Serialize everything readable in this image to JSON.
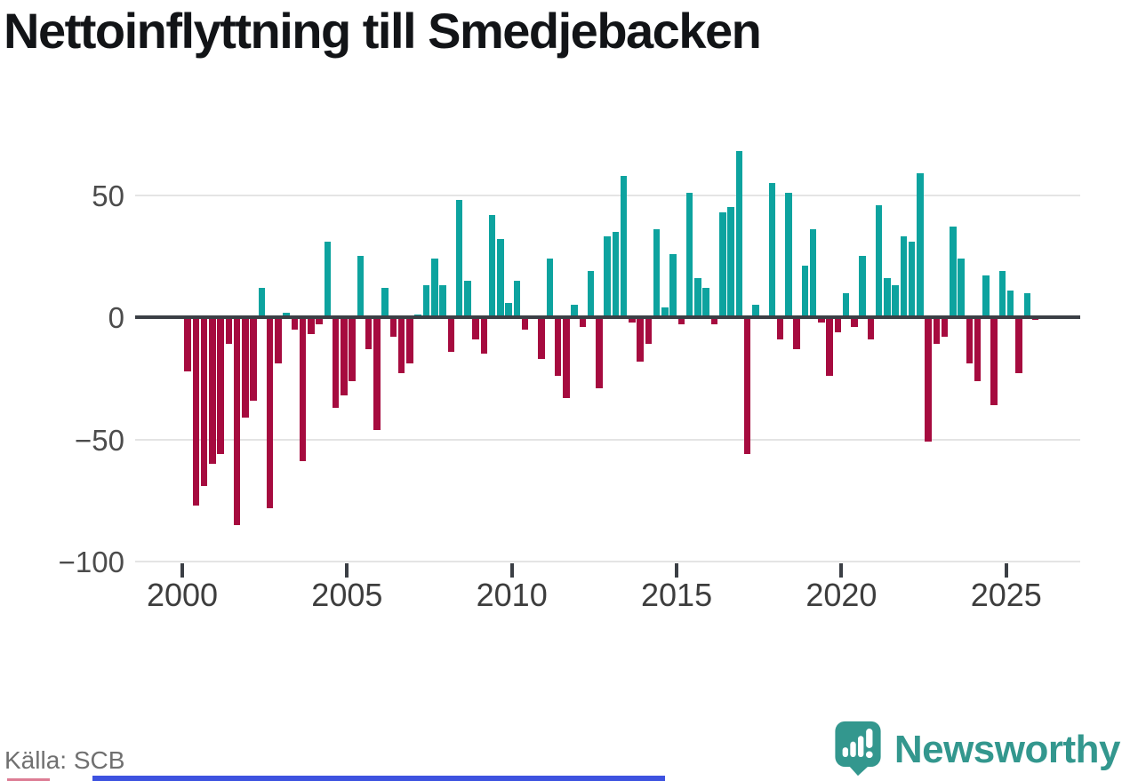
{
  "title": "Nettoinflyttning till Smedjebacken",
  "source": "Källa: SCB",
  "brand": {
    "name": "Newsworthy",
    "icon": "newsworthy-pin-logo"
  },
  "y_axis": {
    "ticks": [
      50,
      0,
      -50,
      -100
    ],
    "tick_labels": [
      "50",
      "0",
      "−50",
      "−100"
    ]
  },
  "x_axis": {
    "ticks": [
      2000,
      2005,
      2010,
      2015,
      2020,
      2025
    ],
    "tick_labels": [
      "2000",
      "2005",
      "2010",
      "2015",
      "2020",
      "2025"
    ]
  },
  "colors": {
    "positive": "#0da39f",
    "negative": "#a60b3f",
    "grid": "#e4e4e4",
    "axis_line": "#3b3f45",
    "axis_text": "#4c4c4c",
    "title_text": "#121417",
    "source_text": "#707070",
    "brand_teal": "#33978e",
    "brand_bar_blue": "#3d52e0",
    "brand_bar_pink": "#dd7d95"
  },
  "chart_data": {
    "type": "bar",
    "title": "Nettoinflyttning till Smedjebacken",
    "start_period": "2000-Q1",
    "frequency": "quarterly",
    "xlabel": "",
    "ylabel": "",
    "ylim": [
      -100,
      70
    ],
    "grid": true,
    "legend": "none",
    "positive_color": "#0da39f",
    "negative_color": "#a60b3f",
    "values": [
      -22,
      -77,
      -69,
      -60,
      -56,
      -11,
      -85,
      -41,
      -34,
      12,
      -78,
      -19,
      2,
      -5,
      -59,
      -7,
      -3,
      31,
      -37,
      -32,
      -26,
      25,
      -13,
      -46,
      12,
      -8,
      -23,
      -19,
      1,
      13,
      24,
      13,
      -14,
      48,
      15,
      -9,
      -15,
      42,
      32,
      6,
      15,
      -5,
      0,
      -17,
      24,
      -24,
      -33,
      5,
      -4,
      19,
      -29,
      33,
      35,
      58,
      -2,
      -18,
      -11,
      36,
      4,
      26,
      -3,
      51,
      16,
      12,
      -3,
      43,
      45,
      68,
      -56,
      5,
      0,
      55,
      -9,
      51,
      -13,
      21,
      36,
      -2,
      -24,
      -6,
      10,
      -4,
      25,
      -9,
      46,
      16,
      13,
      33,
      31,
      59,
      -51,
      -11,
      -8,
      37,
      24,
      -19,
      -26,
      17,
      -36,
      19,
      11,
      -23,
      10,
      -1
    ]
  }
}
